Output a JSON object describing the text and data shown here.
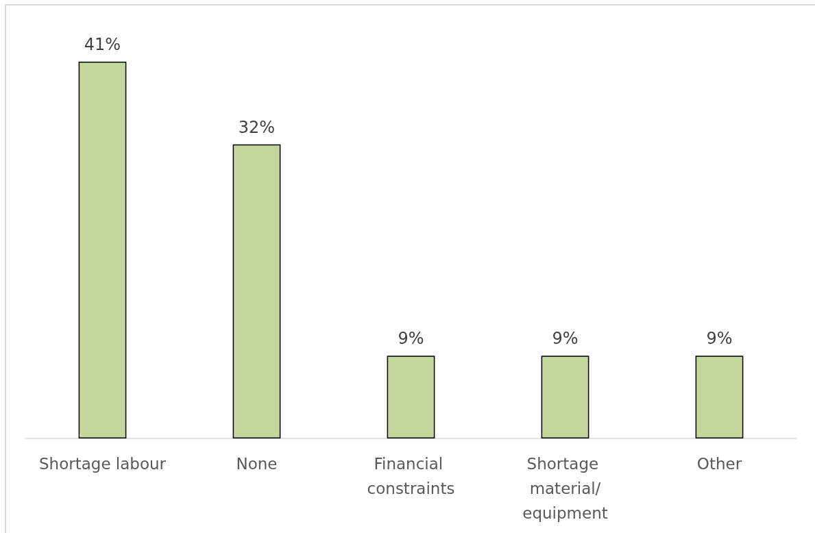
{
  "chart_data": {
    "type": "bar",
    "categories": [
      "Shortage labour",
      "None",
      "Financial constraints",
      "Shortage material/equipment",
      "Other"
    ],
    "values": [
      41,
      32,
      9,
      9,
      9
    ],
    "value_labels": [
      "41%",
      "32%",
      "9%",
      "9%",
      "9%"
    ],
    "color": "#c3d69b"
  }
}
